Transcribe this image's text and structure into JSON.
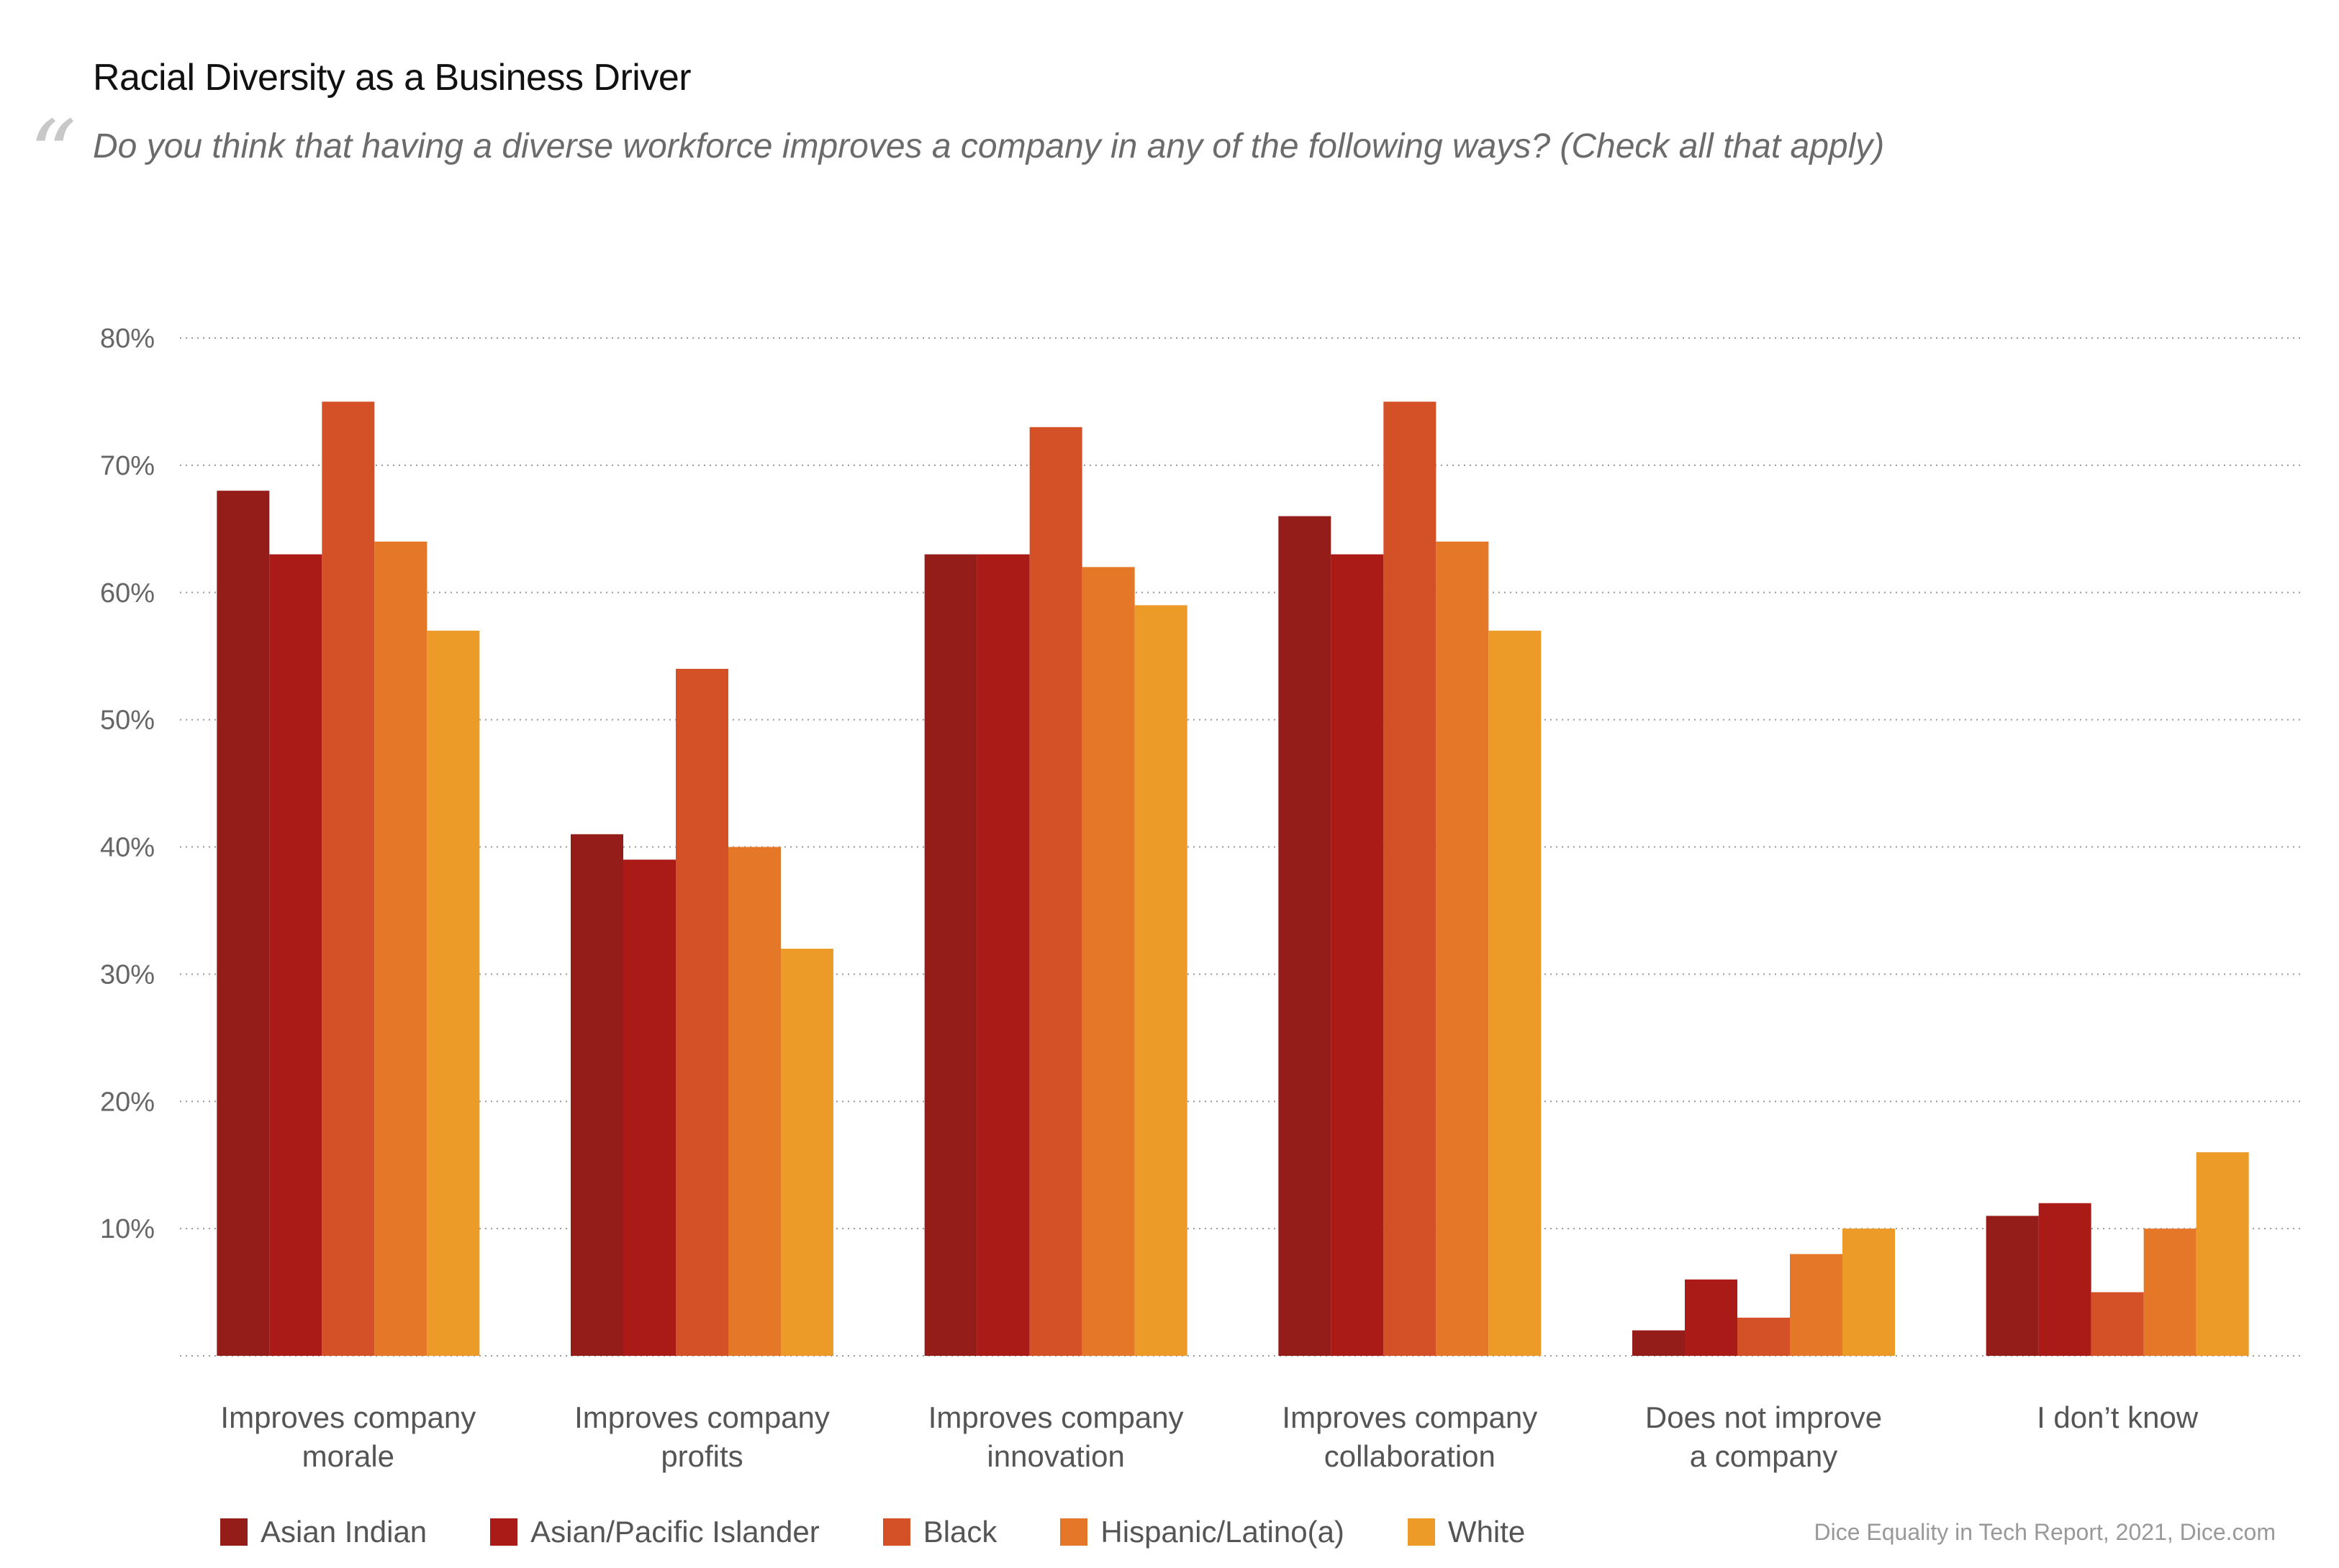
{
  "header": {
    "title": "Racial Diversity as a Business Driver",
    "quote_glyph": "“",
    "subtitle": "Do you think that having a diverse workforce improves a company in any of the following ways? (Check all that apply)"
  },
  "source": "Dice Equality in Tech Report, 2021, Dice.com",
  "chart_data": {
    "type": "bar",
    "title": "Racial Diversity as a Business Driver",
    "subtitle": "Do you think that having a diverse workforce improves a company in any of the following ways? (Check all that apply)",
    "xlabel": "",
    "ylabel": "",
    "ylim": [
      0,
      80
    ],
    "yticks": [
      10,
      20,
      30,
      40,
      50,
      60,
      70,
      80
    ],
    "ytick_labels": [
      "10%",
      "20%",
      "30%",
      "40%",
      "50%",
      "60%",
      "70%",
      "80%"
    ],
    "grid": true,
    "legend_position": "bottom",
    "categories": [
      [
        "Improves company",
        "morale"
      ],
      [
        "Improves company",
        "profits"
      ],
      [
        "Improves company",
        "innovation"
      ],
      [
        "Improves company",
        "collaboration"
      ],
      [
        "Does not improve",
        "a company"
      ],
      [
        "I don’t know"
      ]
    ],
    "series": [
      {
        "name": "Asian Indian",
        "color": "#941d1a",
        "values": [
          68,
          41,
          63,
          66,
          2,
          11
        ]
      },
      {
        "name": "Asian/Pacific Islander",
        "color": "#aa1a17",
        "values": [
          63,
          39,
          63,
          63,
          6,
          12
        ]
      },
      {
        "name": "Black",
        "color": "#d45127",
        "values": [
          75,
          54,
          73,
          75,
          3,
          5
        ]
      },
      {
        "name": "Hispanic/Latino(a)",
        "color": "#e57828",
        "values": [
          64,
          40,
          62,
          64,
          8,
          10
        ]
      },
      {
        "name": "White",
        "color": "#ed9b28",
        "values": [
          57,
          32,
          59,
          57,
          10,
          16
        ]
      }
    ]
  }
}
